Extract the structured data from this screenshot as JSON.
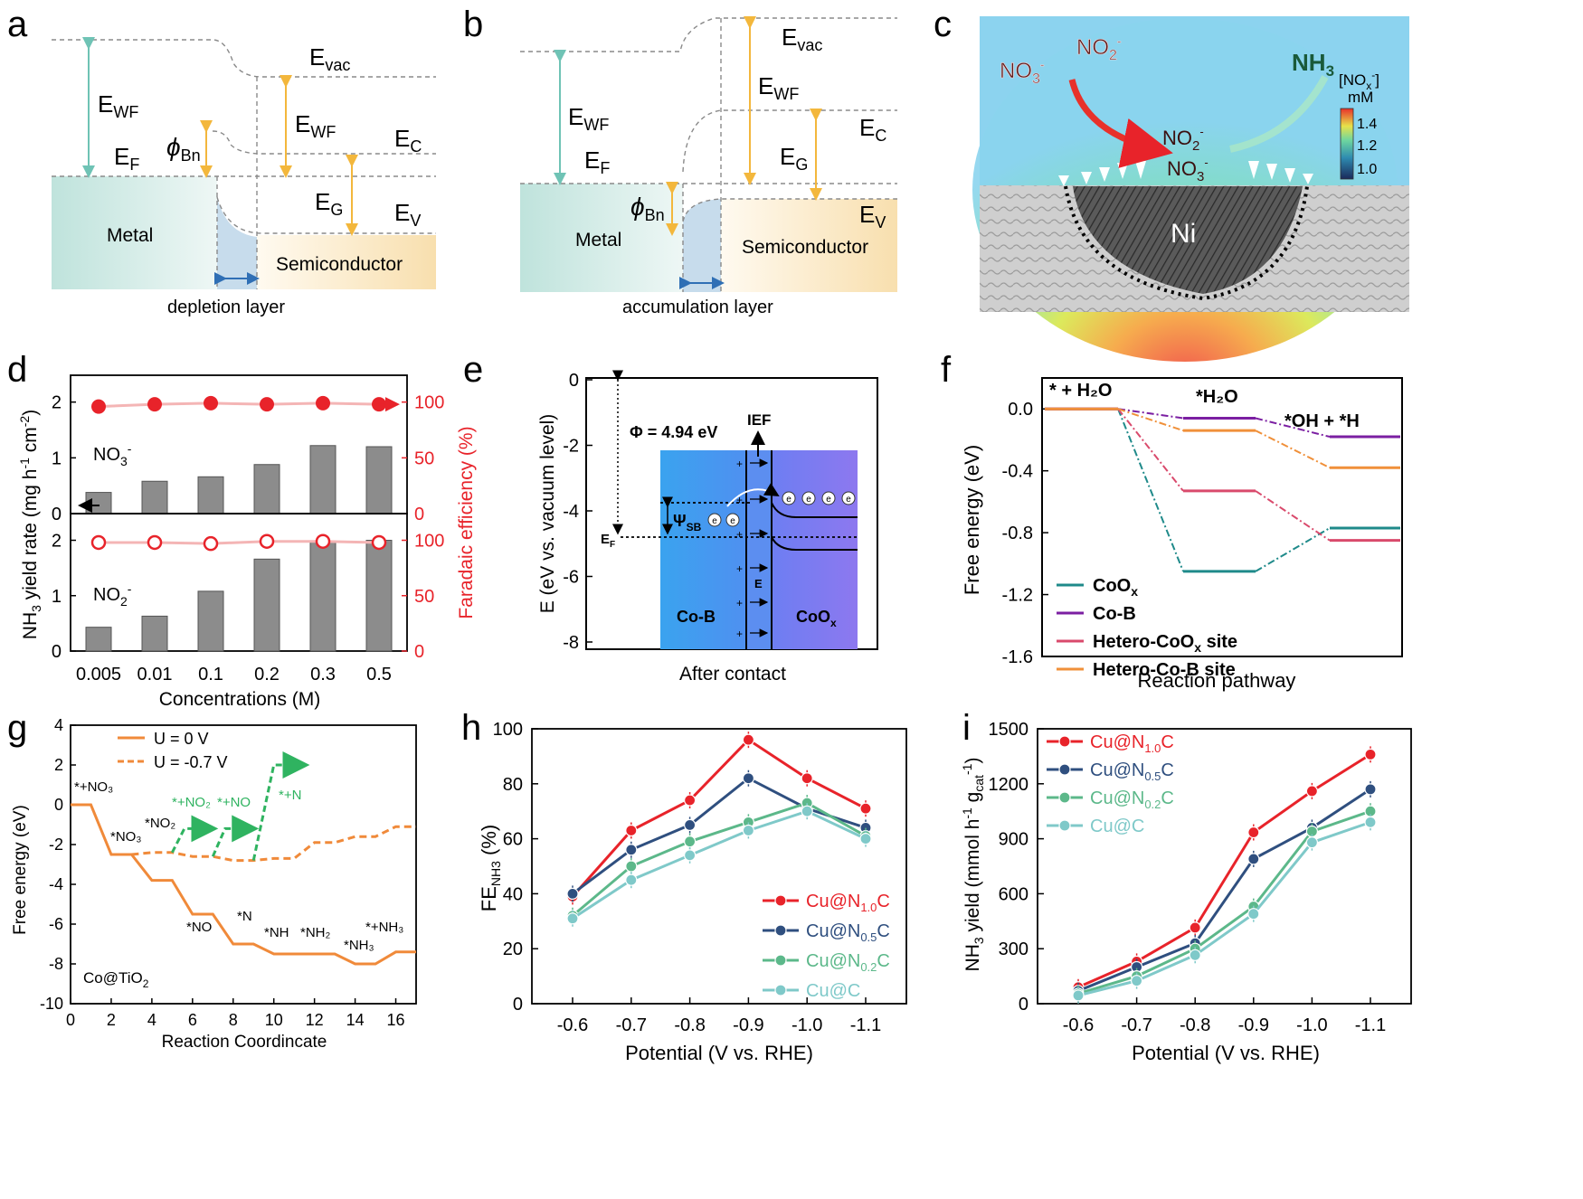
{
  "panels": {
    "a": {
      "letter": "a",
      "labels": {
        "evac": "E",
        "evac_sub": "vac",
        "ewf_left": "E",
        "ewf_sub": "WF",
        "ef": "E",
        "ef_sub": "F",
        "phi": "ϕ",
        "phi_sub": "Bn",
        "ewf_right": "E",
        "ec": "E",
        "ec_sub": "C",
        "eg": "E",
        "eg_sub": "G",
        "ev": "E",
        "ev_sub": "V",
        "metal": "Metal",
        "semi": "Semiconductor",
        "layer": "depletion layer"
      }
    },
    "b": {
      "letter": "b",
      "labels": {
        "evac": "E",
        "evac_sub": "vac",
        "ewf_sub": "WF",
        "ef_sub": "F",
        "phi": "ϕ",
        "phi_sub": "Bn",
        "ec_sub": "C",
        "eg_sub": "G",
        "ev_sub": "V",
        "metal": "Metal",
        "semi": "Semiconductor",
        "layer": "accumulation layer",
        "e": "E"
      }
    },
    "c": {
      "letter": "c",
      "labels": {
        "no3_out": "NO",
        "no3_out_sub": "3",
        "no2_out": "NO",
        "no2_out_sub": "2",
        "nh3": "NH",
        "nh3_sub": "3",
        "no2_in": "NO",
        "no3_in": "NO",
        "ni": "Ni",
        "cb_title1": "[NO",
        "cb_title_sub": "x",
        "cb_title2": "]",
        "cb_unit": "mM",
        "minus": "-"
      },
      "colorbar_ticks": [
        "1.4",
        "1.2",
        "1.0"
      ]
    },
    "d": {
      "letter": "d",
      "ylabel_left": "NH",
      "ylabel_left_sub3": "3",
      "ylabel_left_rest": " yield rate (mg h",
      "ylabel_left_exp1": "-1",
      "ylabel_left_rest2": " cm",
      "ylabel_left_exp2": "-2",
      "ylabel_left_end": ")",
      "ylabel_right": "Faradaic efficiency (%)",
      "xlabel": "Concentrations (M)",
      "top_label": "NO",
      "top_sub": "3",
      "top_sup": "-",
      "bottom_label": "NO",
      "bottom_sub": "2",
      "bottom_sup": "-"
    },
    "e": {
      "letter": "e",
      "ylabel": "E (eV vs. vacuum level)",
      "xlabel": "After contact",
      "phi": "Φ = 4.94 eV",
      "ief": "IEF",
      "psi": "Ψ",
      "psi_sub": "SB",
      "ef": "E",
      "ef_sub": "F",
      "cob": "Co-B",
      "coox": "CoO",
      "coox_sub": "x",
      "field": "E",
      "electron": "e",
      "yticks": [
        "0",
        "-2",
        "-4",
        "-6",
        "-8"
      ]
    },
    "f": {
      "letter": "f",
      "ylabel": "Free energy (eV)",
      "xlabel": "Reaction pathway",
      "states": [
        "* + H₂O",
        "*H₂O",
        "*OH + *H"
      ],
      "yticks": [
        "0.0",
        "-0.4",
        "-0.8",
        "-1.2",
        "-1.6"
      ],
      "legend": [
        {
          "label": "CoO",
          "sub": "x",
          "rest": "",
          "color": "#1f8a8a"
        },
        {
          "label": "Co-B",
          "sub": "",
          "rest": "",
          "color": "#7b1fa2"
        },
        {
          "label": "Hetero-CoO",
          "sub": "x",
          "rest": " site",
          "color": "#d94a6c"
        },
        {
          "label": "Hetero-Co-B site",
          "sub": "",
          "rest": "",
          "color": "#f0903a"
        }
      ]
    },
    "g": {
      "letter": "g",
      "ylabel": "Free energy (eV)",
      "xlabel": "Reaction Coordincate",
      "legend_solid": "U = 0 V",
      "legend_dashed": "U = -0.7 V",
      "catalyst": "Co@TiO",
      "catalyst_sub": "2",
      "xticks": [
        "0",
        "2",
        "4",
        "6",
        "8",
        "10",
        "12",
        "14",
        "16"
      ],
      "yticks": [
        "4",
        "2",
        "0",
        "-2",
        "-4",
        "-6",
        "-8",
        "-10"
      ],
      "intermediates": [
        "*+NO₃",
        "*NO₃",
        "*NO₂",
        "*NO",
        "*N",
        "*NH",
        "*NH₂",
        "*NH₃",
        "*+NH₃"
      ],
      "green_labels": [
        "*+NO₂",
        "*+NO",
        "*+N"
      ]
    },
    "h": {
      "letter": "h",
      "ylabel": "FE",
      "ylabel_sub": "NH3",
      "ylabel_end": " (%)",
      "xlabel": "Potential (V vs. RHE)",
      "yticks": [
        "0",
        "20",
        "40",
        "60",
        "80",
        "100"
      ]
    },
    "i": {
      "letter": "i",
      "ylabel": "NH",
      "ylabel_sub": "3",
      "ylabel_rest": " yield (mmol h",
      "ylabel_exp1": "-1",
      "ylabel_rest2": " g",
      "ylabel_sub2": "cat",
      "ylabel_exp2": "-1",
      "ylabel_end": ")",
      "xlabel": "Potential (V vs. RHE)",
      "yticks": [
        "0",
        "300",
        "600",
        "900",
        "1200",
        "1500"
      ]
    }
  },
  "chart_data": [
    {
      "panel": "d",
      "type": "bar",
      "categories": [
        "0.005",
        "0.01",
        "0.1",
        "0.2",
        "0.3",
        "0.5"
      ],
      "xlabel": "Concentrations (M)",
      "ylabel": "NH3 yield rate (mg h-1 cm-2)",
      "ylabel_right": "Faradaic efficiency (%)",
      "series": [
        {
          "name": "NO3- yield",
          "values": [
            0.38,
            0.58,
            0.66,
            0.88,
            1.22,
            1.2
          ],
          "ylim": [
            0,
            2.4
          ]
        },
        {
          "name": "NO3- FE",
          "values": [
            96,
            98,
            99,
            98,
            99,
            98
          ],
          "ylim": [
            0,
            120
          ]
        },
        {
          "name": "NO2- yield",
          "values": [
            0.43,
            0.63,
            1.08,
            1.66,
            1.98,
            2.0
          ],
          "ylim": [
            0,
            2.4
          ]
        },
        {
          "name": "NO2- FE",
          "values": [
            98,
            98,
            97,
            99,
            99,
            98
          ],
          "ylim": [
            0,
            120
          ]
        }
      ],
      "yticks_left": [
        "0",
        "1",
        "2"
      ],
      "yticks_right": [
        "0",
        "50",
        "100"
      ]
    },
    {
      "panel": "f",
      "type": "line",
      "xlabel": "Reaction pathway",
      "ylabel": "Free energy (eV)",
      "categories": [
        "* + H2O",
        "*H2O",
        "*OH + *H"
      ],
      "ylim": [
        -1.6,
        0.2
      ],
      "series": [
        {
          "name": "CoOx",
          "values": [
            0.0,
            -1.05,
            -0.77
          ]
        },
        {
          "name": "Co-B",
          "values": [
            0.0,
            -0.06,
            -0.18
          ]
        },
        {
          "name": "Hetero-CoOx site",
          "values": [
            0.0,
            -0.53,
            -0.85
          ]
        },
        {
          "name": "Hetero-Co-B site",
          "values": [
            0.0,
            -0.14,
            -0.38
          ]
        }
      ]
    },
    {
      "panel": "g",
      "type": "line",
      "xlabel": "Reaction Coordincate",
      "ylabel": "Free energy (eV)",
      "xlim": [
        0,
        17
      ],
      "ylim": [
        -10,
        4
      ],
      "series": [
        {
          "name": "U = 0 V",
          "x": [
            0,
            1,
            2,
            3,
            4,
            5,
            6,
            7,
            8,
            9,
            10,
            11,
            12,
            13,
            14,
            15,
            16,
            17
          ],
          "values": [
            0,
            0,
            -2.5,
            -2.5,
            -3.8,
            -3.8,
            -5.5,
            -5.5,
            -7.0,
            -7.0,
            -7.5,
            -7.5,
            -7.5,
            -7.5,
            -8.0,
            -8.0,
            -7.4,
            -7.4
          ]
        },
        {
          "name": "U = -0.7 V",
          "x": [
            3,
            4,
            5,
            6,
            7,
            8,
            9,
            10,
            11,
            12,
            13,
            14,
            15,
            16,
            17
          ],
          "values": [
            -2.5,
            -2.4,
            -2.4,
            -2.6,
            -2.6,
            -2.8,
            -2.8,
            -2.7,
            -2.7,
            -1.9,
            -1.9,
            -1.6,
            -1.6,
            -1.1,
            -1.1
          ]
        }
      ]
    },
    {
      "panel": "h",
      "type": "line",
      "xlabel": "Potential (V vs. RHE)",
      "ylabel": "FE NH3 (%)",
      "categories": [
        "-0.6",
        "-0.7",
        "-0.8",
        "-0.9",
        "-1.0",
        "-1.1"
      ],
      "ylim": [
        0,
        100
      ],
      "series": [
        {
          "name": "Cu@N1.0C",
          "values": [
            39,
            63,
            74,
            96,
            82,
            71
          ],
          "color": "#e8232a"
        },
        {
          "name": "Cu@N0.5C",
          "values": [
            40,
            56,
            65,
            82,
            71,
            64
          ],
          "color": "#2f4f7f"
        },
        {
          "name": "Cu@N0.2C",
          "values": [
            32,
            50,
            59,
            66,
            73,
            61
          ],
          "color": "#5cb88a"
        },
        {
          "name": "Cu@C",
          "values": [
            31,
            45,
            54,
            63,
            70,
            60
          ],
          "color": "#7fc9c9"
        }
      ]
    },
    {
      "panel": "i",
      "type": "line",
      "xlabel": "Potential (V vs. RHE)",
      "ylabel": "NH3 yield (mmol h-1 gcat-1)",
      "categories": [
        "-0.6",
        "-0.7",
        "-0.8",
        "-0.9",
        "-1.0",
        "-1.1"
      ],
      "ylim": [
        0,
        1500
      ],
      "series": [
        {
          "name": "Cu@N1.0C",
          "values": [
            90,
            230,
            415,
            935,
            1160,
            1360
          ],
          "color": "#e8232a"
        },
        {
          "name": "Cu@N0.5C",
          "values": [
            70,
            200,
            330,
            790,
            960,
            1170
          ],
          "color": "#2f4f7f"
        },
        {
          "name": "Cu@N0.2C",
          "values": [
            55,
            150,
            300,
            530,
            940,
            1050
          ],
          "color": "#5cb88a"
        },
        {
          "name": "Cu@C",
          "values": [
            45,
            125,
            265,
            490,
            880,
            990
          ],
          "color": "#7fc9c9"
        }
      ]
    }
  ],
  "legend_hi": [
    {
      "base": "Cu@N",
      "sub": "1.0",
      "end": "C"
    },
    {
      "base": "Cu@N",
      "sub": "0.5",
      "end": "C"
    },
    {
      "base": "Cu@N",
      "sub": "0.2",
      "end": "C"
    },
    {
      "base": "Cu@C",
      "sub": "",
      "end": ""
    }
  ],
  "colors": {
    "red": "#e8232a",
    "navy": "#2f4f7f",
    "green": "#5cb88a",
    "teal": "#7fc9c9",
    "orange": "#f08a3a",
    "metal": "#cfe8e4",
    "semi": "#fbe7c2",
    "arrow_teal": "#6fc3b5",
    "arrow_gold": "#f3b73c"
  }
}
